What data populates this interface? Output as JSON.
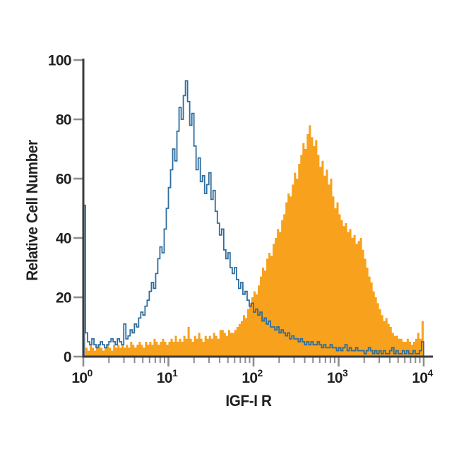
{
  "chart_data": {
    "type": "histogram",
    "subtype": "flow-cytometry-overlay",
    "title": "",
    "xlabel": "IGF-I R",
    "ylabel": "Relative Cell Number",
    "x_scale": "log10",
    "xlim_exponents": [
      0,
      4
    ],
    "x_tick_base": "10",
    "x_tick_exponents": [
      0,
      1,
      2,
      3,
      4
    ],
    "x_minor_tick_multiples": [
      2,
      3,
      4,
      5,
      6,
      7,
      8,
      9
    ],
    "ylim": [
      0,
      100
    ],
    "y_ticks": [
      0,
      20,
      40,
      60,
      80,
      100
    ],
    "grid": false,
    "legend": false,
    "bins_per_decade": 40,
    "series": [
      {
        "name": "orange-filled",
        "style": "filled",
        "color": "#F7A11C",
        "values": [
          2,
          3,
          2,
          4,
          3,
          2,
          3,
          4,
          3,
          2,
          3,
          4,
          3,
          2,
          4,
          3,
          4,
          3,
          4,
          3,
          4,
          3,
          5,
          4,
          3,
          4,
          5,
          4,
          3,
          5,
          4,
          5,
          4,
          6,
          5,
          4,
          5,
          6,
          5,
          4,
          5,
          6,
          5,
          7,
          5,
          6,
          5,
          7,
          6,
          10,
          6,
          5,
          7,
          6,
          8,
          6,
          5,
          7,
          6,
          7,
          6,
          8,
          7,
          6,
          9,
          9,
          8,
          7,
          9,
          8,
          8,
          9,
          10,
          11,
          12,
          14,
          13,
          16,
          18,
          20,
          22,
          21,
          24,
          27,
          30,
          29,
          33,
          35,
          34,
          38,
          40,
          43,
          42,
          46,
          48,
          52,
          55,
          54,
          58,
          62,
          60,
          65,
          68,
          72,
          70,
          75,
          78,
          74,
          71,
          73,
          68,
          64,
          66,
          61,
          63,
          58,
          60,
          54,
          50,
          52,
          48,
          46,
          44,
          45,
          42,
          43,
          40,
          41,
          38,
          39,
          40,
          36,
          33,
          30,
          27,
          25,
          22,
          20,
          18,
          16,
          14,
          12,
          13,
          11,
          10,
          8,
          7,
          7,
          6,
          6,
          5,
          5,
          6,
          5,
          4,
          5,
          6,
          8,
          6,
          12
        ]
      },
      {
        "name": "blue-outline",
        "style": "outline",
        "color": "#2E6D9E",
        "stroke_width": 1.8,
        "values": [
          51,
          8,
          5,
          4,
          6,
          4,
          3,
          4,
          5,
          4,
          3,
          4,
          5,
          6,
          5,
          4,
          6,
          5,
          4,
          11,
          6,
          7,
          9,
          8,
          11,
          10,
          13,
          15,
          14,
          17,
          19,
          22,
          25,
          23,
          28,
          33,
          37,
          35,
          43,
          50,
          57,
          63,
          70,
          66,
          76,
          84,
          80,
          88,
          93,
          86,
          78,
          82,
          71,
          63,
          67,
          59,
          61,
          55,
          58,
          62,
          53,
          56,
          49,
          45,
          41,
          43,
          36,
          33,
          35,
          30,
          28,
          30,
          26,
          23,
          25,
          21,
          22,
          19,
          17,
          18,
          15,
          16,
          14,
          15,
          12,
          13,
          11,
          12,
          10,
          10,
          9,
          10,
          8,
          9,
          8,
          7,
          8,
          6,
          7,
          6,
          6,
          5,
          6,
          5,
          4,
          5,
          4,
          5,
          4,
          4,
          5,
          4,
          3,
          4,
          3,
          3,
          4,
          3,
          3,
          2,
          3,
          2,
          3,
          4,
          2,
          3,
          2,
          2,
          3,
          2,
          2,
          2,
          1,
          2,
          3,
          2,
          1,
          2,
          1,
          2,
          1,
          2,
          1,
          1,
          2,
          3,
          1,
          2,
          1,
          1,
          2,
          1,
          2,
          1,
          1,
          2,
          1,
          1,
          2,
          5
        ]
      }
    ],
    "colors": {
      "axis": "#3B3B3B",
      "ticks": "#8E8E8E",
      "text": "#231F20",
      "background": "#FFFFFF",
      "edge_spike_fill": "#8FB3D2"
    }
  }
}
